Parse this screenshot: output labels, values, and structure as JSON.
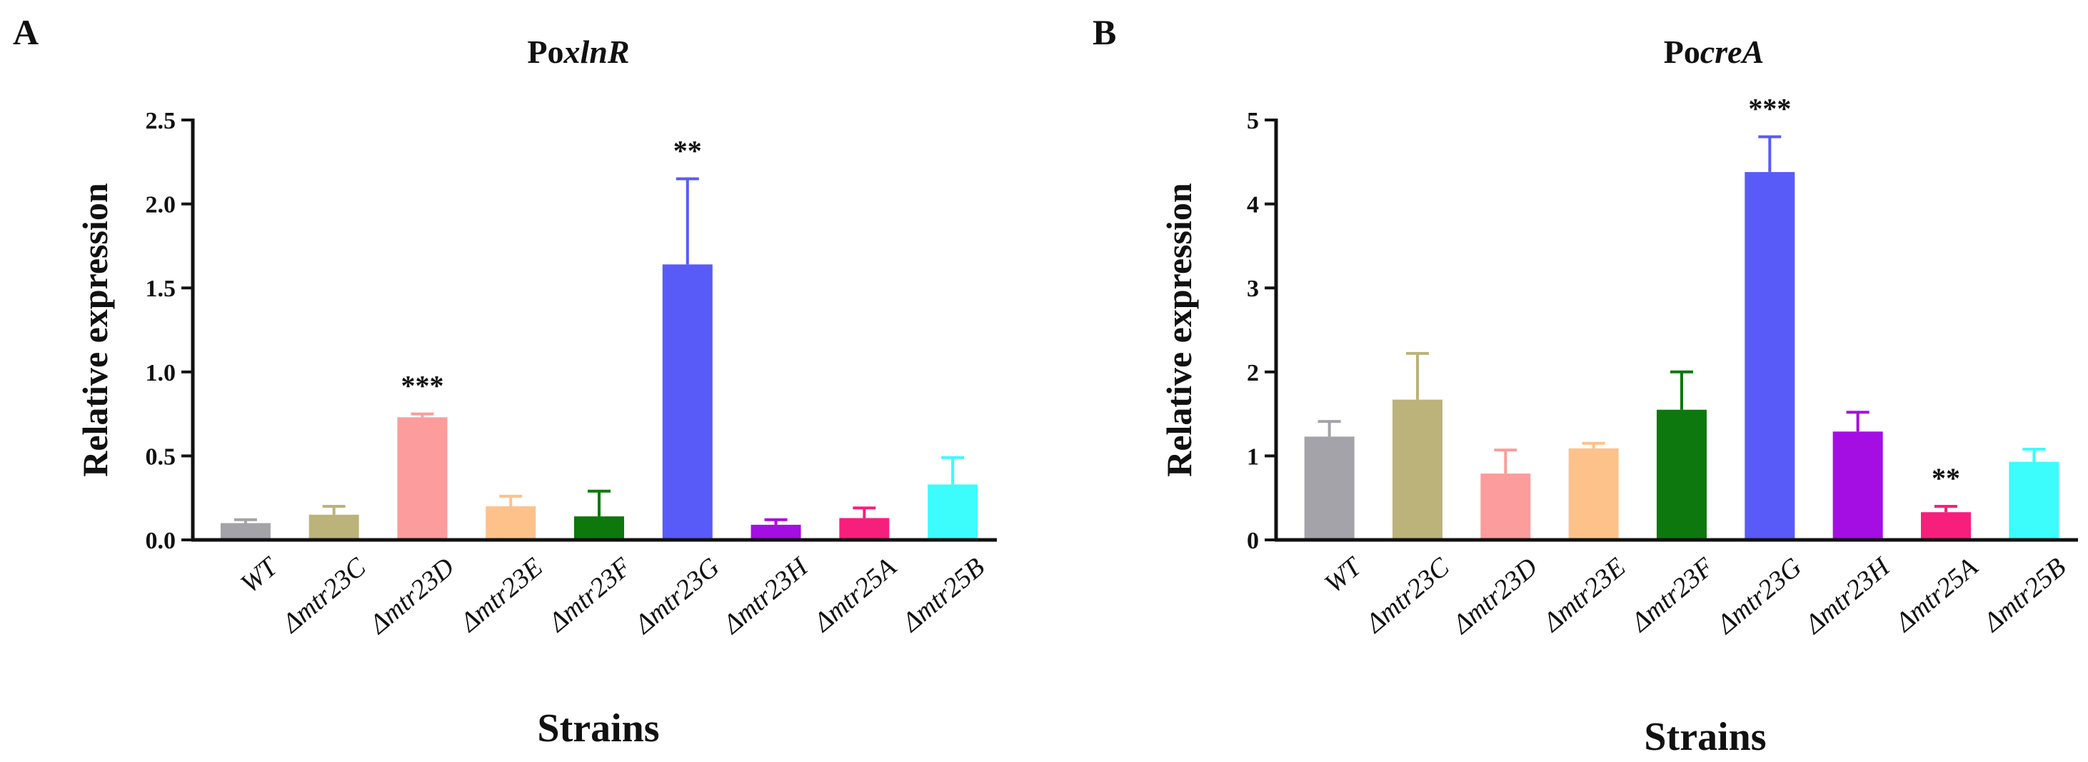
{
  "chart_data": [
    {
      "type": "bar",
      "panel": "A",
      "title_prefix": "Po",
      "title_gene": "xlnR",
      "title": "PoxlnR",
      "xlabel": "Strains",
      "ylabel": "Relative expression",
      "ylim": [
        0,
        2.5
      ],
      "yticks": [
        0.0,
        0.5,
        1.0,
        1.5,
        2.0,
        2.5
      ],
      "ytick_labels": [
        "0.0",
        "0.5",
        "1.0",
        "1.5",
        "2.0",
        "2.5"
      ],
      "categories": [
        "WT",
        "Δmtr23C",
        "Δmtr23D",
        "Δmtr23E",
        "Δmtr23F",
        "Δmtr23G",
        "Δmtr23H",
        "Δmtr25A",
        "Δmtr25B"
      ],
      "values": [
        0.1,
        0.15,
        0.73,
        0.2,
        0.14,
        1.64,
        0.09,
        0.13,
        0.33
      ],
      "errors": [
        0.02,
        0.05,
        0.02,
        0.06,
        0.15,
        0.51,
        0.03,
        0.06,
        0.16
      ],
      "significance": [
        "",
        "",
        "***",
        "",
        "",
        "**",
        "",
        "",
        ""
      ],
      "colors": [
        "#a4a3aa",
        "#bcb37a",
        "#fc9c9c",
        "#fdc28a",
        "#0d780d",
        "#585bf7",
        "#a40ee3",
        "#f71f7c",
        "#3cfcfc"
      ]
    },
    {
      "type": "bar",
      "panel": "B",
      "title_prefix": "Po",
      "title_gene": "creA",
      "title": "PocreA",
      "xlabel": "Strains",
      "ylabel": "Relative expression",
      "ylim": [
        0,
        5
      ],
      "yticks": [
        0,
        1,
        2,
        3,
        4,
        5
      ],
      "ytick_labels": [
        "0",
        "1",
        "2",
        "3",
        "4",
        "5"
      ],
      "categories": [
        "WT",
        "Δmtr23C",
        "Δmtr23D",
        "Δmtr23E",
        "Δmtr23F",
        "Δmtr23G",
        "Δmtr23H",
        "Δmtr25A",
        "Δmtr25B"
      ],
      "values": [
        1.23,
        1.67,
        0.79,
        1.09,
        1.55,
        4.38,
        1.29,
        0.33,
        0.93
      ],
      "errors": [
        0.18,
        0.55,
        0.28,
        0.06,
        0.45,
        0.42,
        0.23,
        0.07,
        0.15
      ],
      "significance": [
        "",
        "",
        "",
        "",
        "",
        "***",
        "",
        "**",
        ""
      ],
      "colors": [
        "#a4a3aa",
        "#bcb37a",
        "#fc9c9c",
        "#fdc28a",
        "#0d780d",
        "#585bf7",
        "#a40ee3",
        "#f71f7c",
        "#3cfcfc"
      ]
    }
  ]
}
